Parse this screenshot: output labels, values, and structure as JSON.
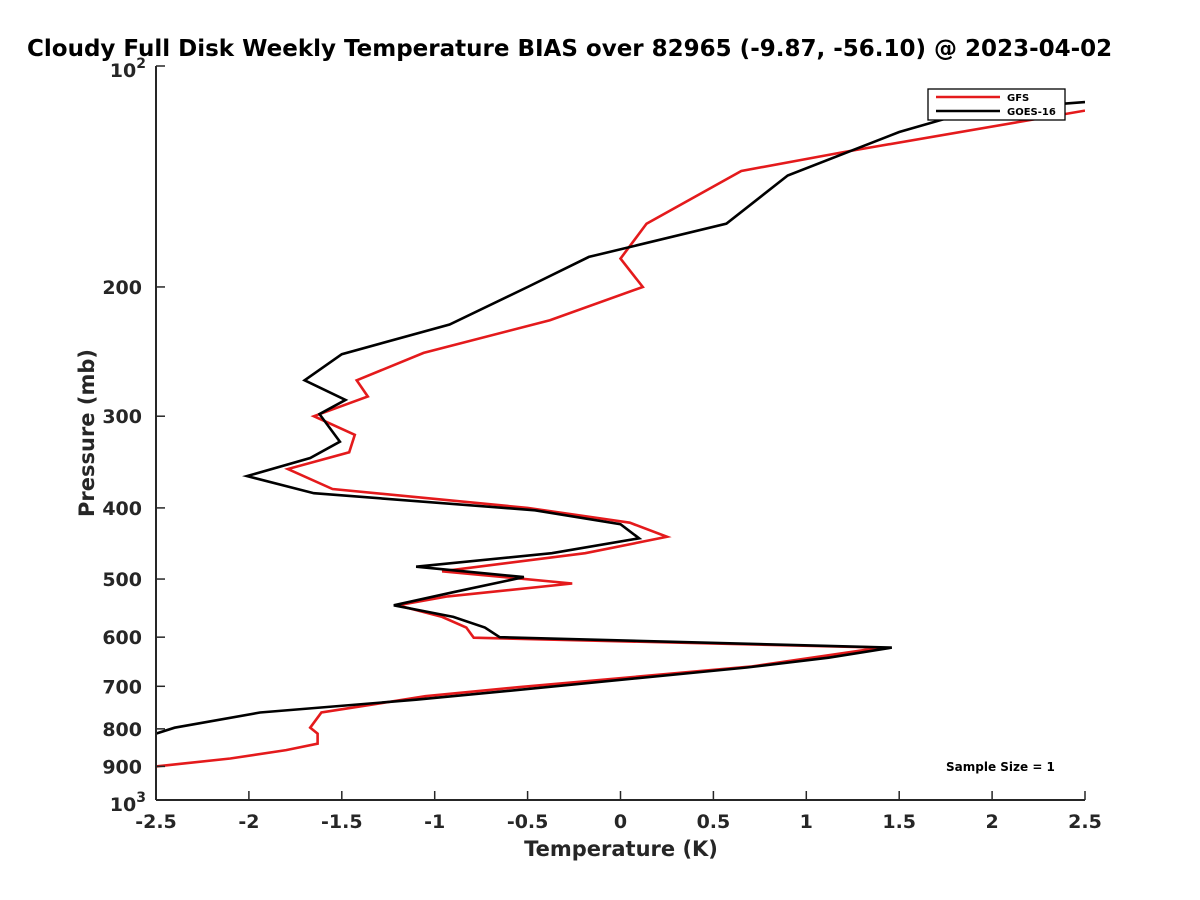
{
  "chart_data": {
    "type": "line",
    "title": "Cloudy Full Disk Weekly Temperature BIAS over 82965 (-9.87, -56.10) @ 2023-04-02",
    "xlabel": "Temperature (K)",
    "ylabel": "Pressure (mb)",
    "xlim": [
      -2.5,
      2.5
    ],
    "ylim": [
      100,
      1000
    ],
    "y_scale": "log",
    "y_direction": "reversed",
    "x_ticks": [
      "-2.5",
      "-2",
      "-1.5",
      "-1",
      "-0.5",
      "0",
      "0.5",
      "1",
      "1.5",
      "2",
      "2.5"
    ],
    "y_ticks": [
      {
        "value": 100,
        "base": "10",
        "exp": "2"
      },
      {
        "value": 200,
        "label": "200"
      },
      {
        "value": 300,
        "label": "300"
      },
      {
        "value": 400,
        "label": "400"
      },
      {
        "value": 500,
        "label": "500"
      },
      {
        "value": 600,
        "label": "600"
      },
      {
        "value": 700,
        "label": "700"
      },
      {
        "value": 800,
        "label": "800"
      },
      {
        "value": 900,
        "label": "900"
      },
      {
        "value": 1000,
        "base": "10",
        "exp": "3"
      }
    ],
    "legend_position": "top-right",
    "annotation": "Sample Size = 1",
    "series": [
      {
        "name": "GFS",
        "color": "#e41a1c",
        "points": [
          {
            "x": 2.5,
            "p": 115
          },
          {
            "x": 1.2,
            "p": 131
          },
          {
            "x": 0.65,
            "p": 139
          },
          {
            "x": 0.14,
            "p": 164
          },
          {
            "x": 0.0,
            "p": 183
          },
          {
            "x": 0.12,
            "p": 200
          },
          {
            "x": -0.38,
            "p": 222
          },
          {
            "x": -1.06,
            "p": 246
          },
          {
            "x": -1.42,
            "p": 268
          },
          {
            "x": -1.36,
            "p": 282
          },
          {
            "x": -1.65,
            "p": 300
          },
          {
            "x": -1.43,
            "p": 318
          },
          {
            "x": -1.46,
            "p": 336
          },
          {
            "x": -1.79,
            "p": 354
          },
          {
            "x": -1.55,
            "p": 377
          },
          {
            "x": -0.5,
            "p": 400
          },
          {
            "x": 0.05,
            "p": 419
          },
          {
            "x": 0.25,
            "p": 438
          },
          {
            "x": -0.19,
            "p": 461
          },
          {
            "x": -0.96,
            "p": 488
          },
          {
            "x": -0.26,
            "p": 507
          },
          {
            "x": -0.93,
            "p": 528
          },
          {
            "x": -1.2,
            "p": 543
          },
          {
            "x": -0.96,
            "p": 563
          },
          {
            "x": -0.83,
            "p": 582
          },
          {
            "x": -0.79,
            "p": 601
          },
          {
            "x": 1.4,
            "p": 620
          },
          {
            "x": 0.7,
            "p": 658
          },
          {
            "x": -0.55,
            "p": 702
          },
          {
            "x": -1.05,
            "p": 722
          },
          {
            "x": -1.61,
            "p": 760
          },
          {
            "x": -1.67,
            "p": 797
          },
          {
            "x": -1.63,
            "p": 812
          },
          {
            "x": -1.63,
            "p": 838
          },
          {
            "x": -1.8,
            "p": 855
          },
          {
            "x": -2.1,
            "p": 878
          },
          {
            "x": -2.5,
            "p": 900
          }
        ]
      },
      {
        "name": "GOES-16",
        "color": "#000000",
        "points": [
          {
            "x": 2.5,
            "p": 112
          },
          {
            "x": 1.9,
            "p": 115
          },
          {
            "x": 1.5,
            "p": 123
          },
          {
            "x": 0.9,
            "p": 141
          },
          {
            "x": 0.57,
            "p": 164
          },
          {
            "x": -0.17,
            "p": 182
          },
          {
            "x": -0.5,
            "p": 200
          },
          {
            "x": -0.92,
            "p": 225
          },
          {
            "x": -1.5,
            "p": 247
          },
          {
            "x": -1.7,
            "p": 268
          },
          {
            "x": -1.48,
            "p": 285
          },
          {
            "x": -1.62,
            "p": 298
          },
          {
            "x": -1.51,
            "p": 325
          },
          {
            "x": -1.67,
            "p": 342
          },
          {
            "x": -2.01,
            "p": 362
          },
          {
            "x": -1.65,
            "p": 382
          },
          {
            "x": -0.46,
            "p": 403
          },
          {
            "x": 0.0,
            "p": 421
          },
          {
            "x": 0.1,
            "p": 440
          },
          {
            "x": -0.37,
            "p": 461
          },
          {
            "x": -1.1,
            "p": 481
          },
          {
            "x": -0.52,
            "p": 497
          },
          {
            "x": -0.9,
            "p": 521
          },
          {
            "x": -1.22,
            "p": 543
          },
          {
            "x": -0.9,
            "p": 563
          },
          {
            "x": -0.73,
            "p": 582
          },
          {
            "x": -0.65,
            "p": 600
          },
          {
            "x": 1.46,
            "p": 620
          },
          {
            "x": 1.12,
            "p": 640
          },
          {
            "x": 0.68,
            "p": 660
          },
          {
            "x": -0.65,
            "p": 712
          },
          {
            "x": -1.1,
            "p": 730
          },
          {
            "x": -1.94,
            "p": 760
          },
          {
            "x": -2.4,
            "p": 797
          },
          {
            "x": -2.5,
            "p": 812
          }
        ]
      }
    ]
  }
}
